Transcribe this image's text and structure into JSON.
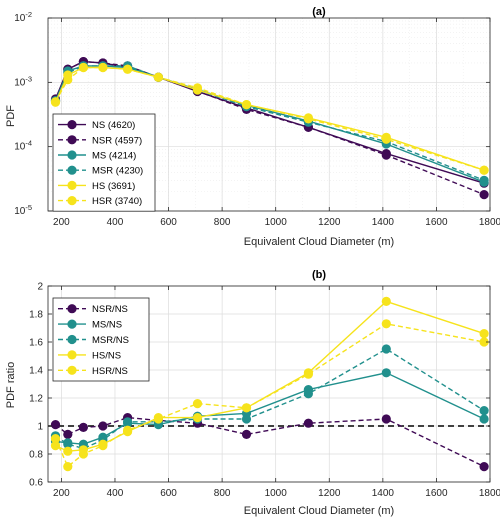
{
  "colors": {
    "NS": "#3f0a55",
    "MS": "#21908d",
    "HS": "#f6e31c",
    "ref": "#000000",
    "grid": "#dcdcdc",
    "axis": "#262626"
  },
  "chart_data": [
    {
      "type": "line",
      "title": "(a)",
      "xlabel": "Equivalent Cloud Diameter (m)",
      "ylabel": "PDF",
      "yscale": "log",
      "xlim": [
        150,
        1800
      ],
      "ylim": [
        1e-05,
        0.01
      ],
      "grid": true,
      "legend_position": "bottom-left",
      "x_ticks": [
        "200",
        "400",
        "600",
        "800",
        "1000",
        "1200",
        "1400",
        "1600",
        "1800"
      ],
      "y_ticks": [
        {
          "base": "10",
          "exp": "-5"
        },
        {
          "base": "10",
          "exp": "-4"
        },
        {
          "base": "10",
          "exp": "-3"
        },
        {
          "base": "10",
          "exp": "-2"
        }
      ],
      "x": [
        178,
        224,
        282,
        355,
        447,
        562,
        708,
        891,
        1122,
        1413,
        1778
      ],
      "series": [
        {
          "name": "NS (4620)",
          "color_key": "NS",
          "dashed": false,
          "values": [
            0.00055,
            0.0016,
            0.0021,
            0.002,
            0.0017,
            0.0012,
            0.00072,
            0.0004,
            0.0002,
            7.8e-05,
            2.7e-05
          ]
        },
        {
          "name": "NSR (4597)",
          "color_key": "NS",
          "dashed": true,
          "values": [
            0.00053,
            0.0016,
            0.0021,
            0.002,
            0.0018,
            0.0012,
            0.00073,
            0.00038,
            0.0002,
            7.4e-05,
            1.8e-05
          ]
        },
        {
          "name": "MS (4214)",
          "color_key": "MS",
          "dashed": false,
          "values": [
            0.00051,
            0.0015,
            0.0018,
            0.0018,
            0.0017,
            0.0012,
            0.00077,
            0.00044,
            0.00025,
            0.00011,
            2.8e-05
          ]
        },
        {
          "name": "MSR (4230)",
          "color_key": "MS",
          "dashed": true,
          "values": [
            0.00052,
            0.0014,
            0.0018,
            0.0018,
            0.0018,
            0.0012,
            0.00076,
            0.00042,
            0.00024,
            0.00012,
            3e-05
          ]
        },
        {
          "name": "HS (3691)",
          "color_key": "HS",
          "dashed": false,
          "values": [
            0.00049,
            0.0013,
            0.0017,
            0.0017,
            0.0016,
            0.0012,
            0.00076,
            0.00045,
            0.00028,
            0.00014,
            4.3e-05
          ]
        },
        {
          "name": "HSR (3740)",
          "color_key": "HS",
          "dashed": true,
          "values": [
            0.0005,
            0.0011,
            0.0017,
            0.0017,
            0.0016,
            0.0012,
            0.00082,
            0.00045,
            0.00027,
            0.00013,
            4.3e-05
          ]
        }
      ]
    },
    {
      "type": "line",
      "title": "(b)",
      "xlabel": "Equivalent Cloud Diameter (m)",
      "ylabel": "PDF ratio",
      "xlim": [
        150,
        1800
      ],
      "ylim": [
        0.6,
        2.0
      ],
      "grid": true,
      "legend_position": "top-left",
      "x_ticks": [
        "200",
        "400",
        "600",
        "800",
        "1000",
        "1200",
        "1400",
        "1600",
        "1800"
      ],
      "y_ticks": [
        "0.6",
        "0.8",
        "1",
        "1.2",
        "1.4",
        "1.6",
        "1.8",
        "2"
      ],
      "reference_line": 1.0,
      "x": [
        178,
        224,
        282,
        355,
        447,
        562,
        708,
        891,
        1122,
        1413,
        1778
      ],
      "series": [
        {
          "name": "NSR/NS",
          "color_key": "NS",
          "dashed": true,
          "values": [
            1.01,
            0.94,
            0.99,
            1.0,
            1.06,
            1.04,
            1.02,
            0.94,
            1.02,
            1.05,
            0.71
          ]
        },
        {
          "name": "MS/NS",
          "color_key": "MS",
          "dashed": false,
          "values": [
            0.89,
            0.88,
            0.87,
            0.92,
            1.02,
            1.01,
            1.07,
            1.09,
            1.26,
            1.38,
            1.05
          ]
        },
        {
          "name": "MSR/NS",
          "color_key": "MS",
          "dashed": true,
          "values": [
            0.93,
            0.87,
            0.84,
            0.9,
            1.03,
            1.03,
            1.05,
            1.05,
            1.23,
            1.55,
            1.11
          ]
        },
        {
          "name": "HS/NS",
          "color_key": "HS",
          "dashed": false,
          "values": [
            0.86,
            0.82,
            0.83,
            0.87,
            0.96,
            1.06,
            1.06,
            1.13,
            1.38,
            1.89,
            1.66
          ]
        },
        {
          "name": "HSR/NS",
          "color_key": "HS",
          "dashed": true,
          "values": [
            0.91,
            0.71,
            0.8,
            0.86,
            0.97,
            1.05,
            1.16,
            1.13,
            1.37,
            1.73,
            1.6
          ]
        }
      ]
    }
  ]
}
